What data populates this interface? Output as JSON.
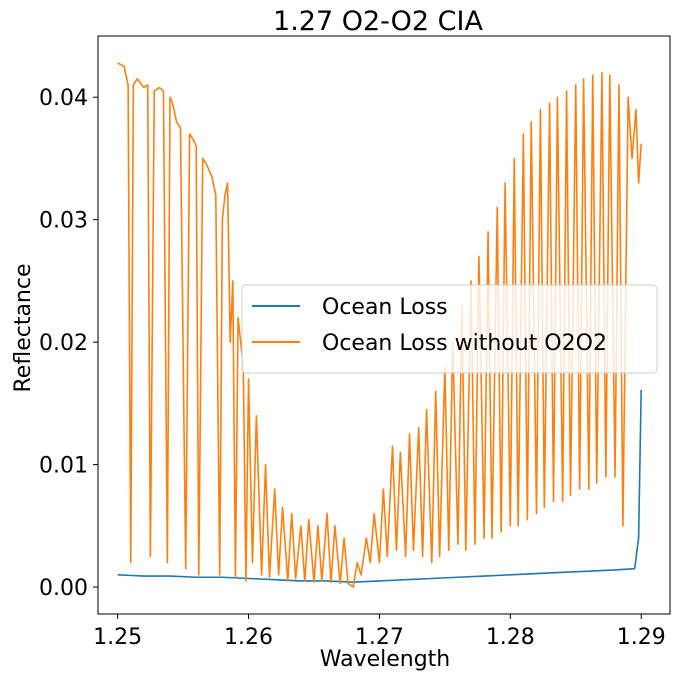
{
  "chart_data": {
    "type": "line",
    "title": "1.27 O2-O2 CIA",
    "xlabel": "Wavelength",
    "ylabel": "Reflectance",
    "xlim": [
      1.2485,
      1.2922
    ],
    "ylim": [
      -0.0022,
      0.045
    ],
    "xticks": [
      1.25,
      1.26,
      1.27,
      1.28,
      1.29
    ],
    "xtick_labels": [
      "1.25",
      "1.26",
      "1.27",
      "1.28",
      "1.29"
    ],
    "yticks": [
      0.0,
      0.01,
      0.02,
      0.03,
      0.04
    ],
    "ytick_labels": [
      "0.00",
      "0.01",
      "0.02",
      "0.03",
      "0.04"
    ],
    "grid": false,
    "legend_position": "center-right",
    "series": [
      {
        "name": "Ocean Loss",
        "color": "#1f77b4",
        "x": [
          1.25,
          1.252,
          1.254,
          1.256,
          1.258,
          1.26,
          1.262,
          1.264,
          1.266,
          1.268,
          1.27,
          1.272,
          1.274,
          1.276,
          1.278,
          1.28,
          1.282,
          1.284,
          1.286,
          1.288,
          1.2895,
          1.2898,
          1.29
        ],
        "y": [
          0.001,
          0.0009,
          0.0009,
          0.0008,
          0.0008,
          0.0007,
          0.0006,
          0.0005,
          0.0005,
          0.0004,
          0.0005,
          0.0006,
          0.0007,
          0.0008,
          0.0009,
          0.001,
          0.0011,
          0.0012,
          0.0013,
          0.0014,
          0.0015,
          0.004,
          0.0161
        ]
      },
      {
        "name": "Ocean Loss without O2O2",
        "color": "#ff7f0e",
        "x": [
          1.25,
          1.2505,
          1.2508,
          1.251,
          1.2512,
          1.2515,
          1.252,
          1.2523,
          1.2525,
          1.2528,
          1.2532,
          1.2535,
          1.2538,
          1.254,
          1.2542,
          1.2545,
          1.2548,
          1.2552,
          1.2555,
          1.2558,
          1.256,
          1.2562,
          1.2565,
          1.2568,
          1.2572,
          1.2575,
          1.2578,
          1.258,
          1.2582,
          1.2584,
          1.2586,
          1.2588,
          1.259,
          1.2592,
          1.2594,
          1.2596,
          1.2598,
          1.26,
          1.2603,
          1.2606,
          1.261,
          1.2613,
          1.2616,
          1.262,
          1.2623,
          1.2626,
          1.263,
          1.2633,
          1.2636,
          1.264,
          1.2643,
          1.2646,
          1.265,
          1.2653,
          1.2656,
          1.266,
          1.2663,
          1.2666,
          1.267,
          1.2673,
          1.2676,
          1.268,
          1.2683,
          1.2686,
          1.269,
          1.2693,
          1.2696,
          1.27,
          1.2703,
          1.2706,
          1.271,
          1.2713,
          1.2716,
          1.272,
          1.2723,
          1.2726,
          1.273,
          1.2733,
          1.2736,
          1.274,
          1.2743,
          1.2746,
          1.275,
          1.2753,
          1.2756,
          1.276,
          1.2763,
          1.2766,
          1.277,
          1.2773,
          1.2776,
          1.278,
          1.2783,
          1.2786,
          1.279,
          1.2793,
          1.2796,
          1.28,
          1.2803,
          1.2806,
          1.281,
          1.2813,
          1.2816,
          1.282,
          1.2823,
          1.2826,
          1.283,
          1.2833,
          1.2836,
          1.284,
          1.2843,
          1.2846,
          1.285,
          1.2853,
          1.2856,
          1.286,
          1.2863,
          1.2866,
          1.287,
          1.2873,
          1.2876,
          1.288,
          1.2883,
          1.2886,
          1.289,
          1.2893,
          1.2896,
          1.2898,
          1.29
        ],
        "y": [
          0.0428,
          0.0425,
          0.041,
          0.002,
          0.041,
          0.0415,
          0.0408,
          0.041,
          0.0025,
          0.0405,
          0.0408,
          0.0405,
          0.002,
          0.04,
          0.0395,
          0.038,
          0.0375,
          0.0015,
          0.037,
          0.0365,
          0.036,
          0.001,
          0.035,
          0.0345,
          0.0335,
          0.032,
          0.001,
          0.03,
          0.032,
          0.033,
          0.02,
          0.025,
          0.0008,
          0.022,
          0.02,
          0.018,
          0.0005,
          0.017,
          0.002,
          0.014,
          0.001,
          0.01,
          0.0008,
          0.008,
          0.001,
          0.0065,
          0.0005,
          0.006,
          0.0007,
          0.005,
          0.0005,
          0.0055,
          0.0004,
          0.005,
          0.0005,
          0.006,
          0.0004,
          0.005,
          0.0003,
          0.004,
          0.0003,
          0.0,
          0.002,
          0.001,
          0.004,
          0.002,
          0.006,
          0.002,
          0.008,
          0.0025,
          0.0115,
          0.003,
          0.011,
          0.0025,
          0.0125,
          0.003,
          0.013,
          0.0025,
          0.0145,
          0.002,
          0.016,
          0.0025,
          0.018,
          0.003,
          0.02,
          0.0035,
          0.023,
          0.003,
          0.025,
          0.0035,
          0.027,
          0.004,
          0.029,
          0.004,
          0.031,
          0.0045,
          0.033,
          0.005,
          0.035,
          0.005,
          0.037,
          0.0055,
          0.038,
          0.006,
          0.039,
          0.0065,
          0.0395,
          0.007,
          0.04,
          0.007,
          0.0405,
          0.0075,
          0.041,
          0.008,
          0.0415,
          0.008,
          0.0418,
          0.0085,
          0.042,
          0.009,
          0.0418,
          0.009,
          0.041,
          0.005,
          0.04,
          0.035,
          0.039,
          0.033,
          0.0362
        ]
      }
    ]
  }
}
